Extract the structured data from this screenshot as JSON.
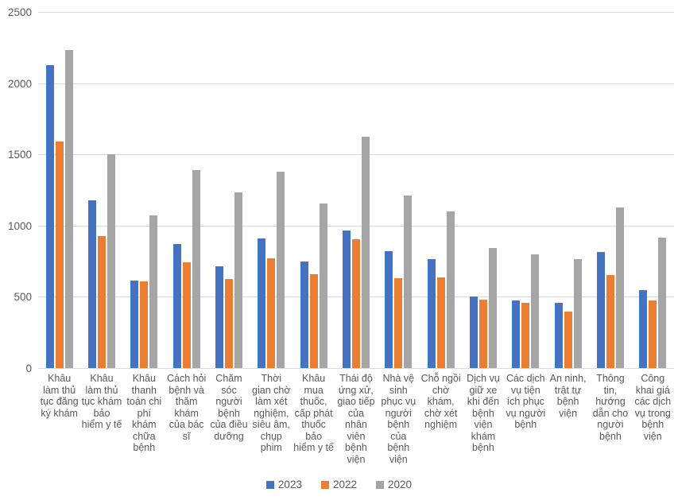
{
  "chart_data": {
    "type": "bar",
    "title": "",
    "xlabel": "",
    "ylabel": "",
    "ylim": [
      0,
      2500
    ],
    "yticks": [
      0,
      500,
      1000,
      1500,
      2000,
      2500
    ],
    "grid": true,
    "legend_position": "bottom",
    "categories": [
      "Khâu làm thủ tục đăng ký khám",
      "Khâu làm thủ tục khám bảo hiểm y tế",
      "Khâu thanh toán chi phí khám chữa bệnh",
      "Cách hỏi bệnh và thăm khám của bác sĩ",
      "Chăm sóc người bệnh của điều dưỡng",
      "Thời gian chờ làm xét nghiệm, siêu âm, chụp phim",
      "Khâu mua thuốc, cấp phát thuốc bảo hiểm y tế",
      "Thái độ ứng xử, giao tiếp của nhân viên bệnh viện",
      "Nhà vệ sinh phục vụ người bệnh của bệnh viện",
      "Chỗ ngồi chờ khám, chờ xét nghiệm",
      "Dịch vụ giữ xe khi đến bệnh viện khám bệnh",
      "Các dịch vụ tiện ích phục vụ người bệnh",
      "An ninh, trật tự bệnh viện",
      "Thông tin, hướng dẫn cho người bệnh",
      "Công khai giá các dịch vụ trong bệnh viện"
    ],
    "series": [
      {
        "name": "2023",
        "color": "#4472c4",
        "values": [
          2125,
          1175,
          615,
          870,
          715,
          910,
          750,
          965,
          820,
          765,
          505,
          475,
          455,
          815,
          545
        ]
      },
      {
        "name": "2022",
        "color": "#ed7d31",
        "values": [
          1590,
          925,
          610,
          745,
          625,
          770,
          660,
          905,
          630,
          635,
          480,
          455,
          395,
          655,
          475
        ]
      },
      {
        "name": "2020",
        "color": "#a5a5a5",
        "values": [
          2235,
          1500,
          1070,
          1390,
          1235,
          1380,
          1155,
          1625,
          1210,
          1100,
          845,
          800,
          765,
          1125,
          915
        ]
      }
    ],
    "colors": {
      "gridline": "#d9d9d9",
      "axis_text": "#595959",
      "background": "#ffffff"
    }
  }
}
